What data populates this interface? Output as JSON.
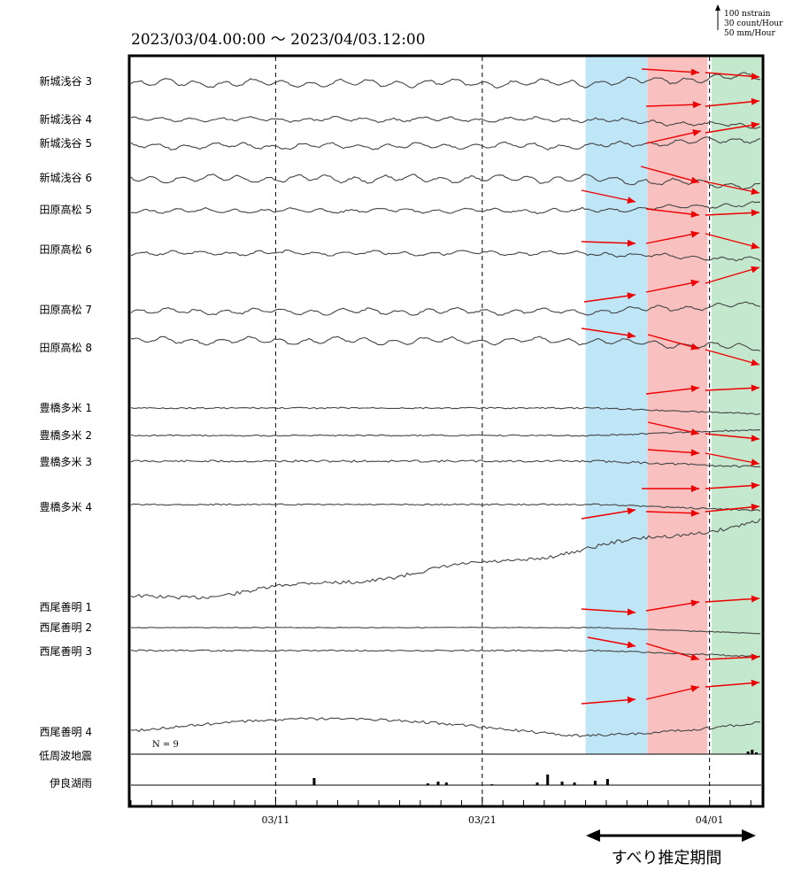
{
  "chart_data": {
    "type": "line",
    "title": "2023/03/04.00:00 〜 2023/04/03.12:00",
    "scale_note": [
      "100 nstrain",
      "30 count/Hour",
      "50 mm/Hour"
    ],
    "x_ticks": [
      "03/11",
      "03/21",
      "04/01"
    ],
    "x_tick_days": [
      7,
      17,
      28
    ],
    "x_range_days": [
      0,
      30.5
    ],
    "periods": [
      {
        "label": "",
        "start_day": 22.0,
        "end_day": 25.0,
        "color": "#bfe6f7"
      },
      {
        "label": "",
        "start_day": 25.0,
        "end_day": 27.9,
        "color": "#f9c0c0"
      },
      {
        "label": "",
        "start_day": 28.1,
        "end_day": 30.5,
        "color": "#c4e8cd"
      }
    ],
    "annotation": "すべり推定期間",
    "count_label": "N =   9",
    "series": [
      {
        "name": "新城浅谷 3",
        "kind": "wavy",
        "amp": 0.9
      },
      {
        "name": "新城浅谷 4",
        "kind": "wavy",
        "amp": 0.5
      },
      {
        "name": "新城浅谷 5",
        "kind": "wavy",
        "amp": 0.7
      },
      {
        "name": "新城浅谷 6",
        "kind": "wavy",
        "amp": 0.9
      },
      {
        "name": "田原高松 5",
        "kind": "wavy",
        "amp": 0.5
      },
      {
        "name": "田原高松 6",
        "kind": "wavy",
        "amp": 0.5
      },
      {
        "name": "田原高松 7",
        "kind": "wavy",
        "amp": 0.7
      },
      {
        "name": "田原高松 8",
        "kind": "wavy",
        "amp": 0.8
      },
      {
        "name": "豊橋多米 1",
        "kind": "flat",
        "amp": 0.2
      },
      {
        "name": "豊橋多米 2",
        "kind": "flat",
        "amp": 0.2
      },
      {
        "name": "豊橋多米 3",
        "kind": "flat",
        "amp": 0.3
      },
      {
        "name": "豊橋多米 4",
        "kind": "flat",
        "amp": 0.2
      },
      {
        "name": "西尾善明 1",
        "kind": "rising",
        "amp": 0.3
      },
      {
        "name": "西尾善明 2",
        "kind": "flat",
        "amp": 0.1
      },
      {
        "name": "西尾善明 3",
        "kind": "flat",
        "amp": 0.2
      },
      {
        "name": "西尾善明 4",
        "kind": "bumpy",
        "amp": 0.4
      },
      {
        "name": "低周波地震",
        "kind": "bars",
        "amp": 0
      },
      {
        "name": "伊良湖雨",
        "kind": "bars",
        "amp": 0
      }
    ],
    "rain_bars": [
      {
        "day": 8.8,
        "value": 8
      },
      {
        "day": 14.3,
        "value": 2
      },
      {
        "day": 14.8,
        "value": 4
      },
      {
        "day": 15.2,
        "value": 3
      },
      {
        "day": 17.4,
        "value": 1
      },
      {
        "day": 19.6,
        "value": 3
      },
      {
        "day": 20.1,
        "value": 12
      },
      {
        "day": 20.8,
        "value": 4
      },
      {
        "day": 21.4,
        "value": 3
      },
      {
        "day": 22.4,
        "value": 5
      },
      {
        "day": 23.0,
        "value": 7
      }
    ],
    "lfe_bars": [
      {
        "day": 29.8,
        "value": 3
      },
      {
        "day": 30.0,
        "value": 5
      },
      {
        "day": 30.2,
        "value": 2
      }
    ]
  }
}
